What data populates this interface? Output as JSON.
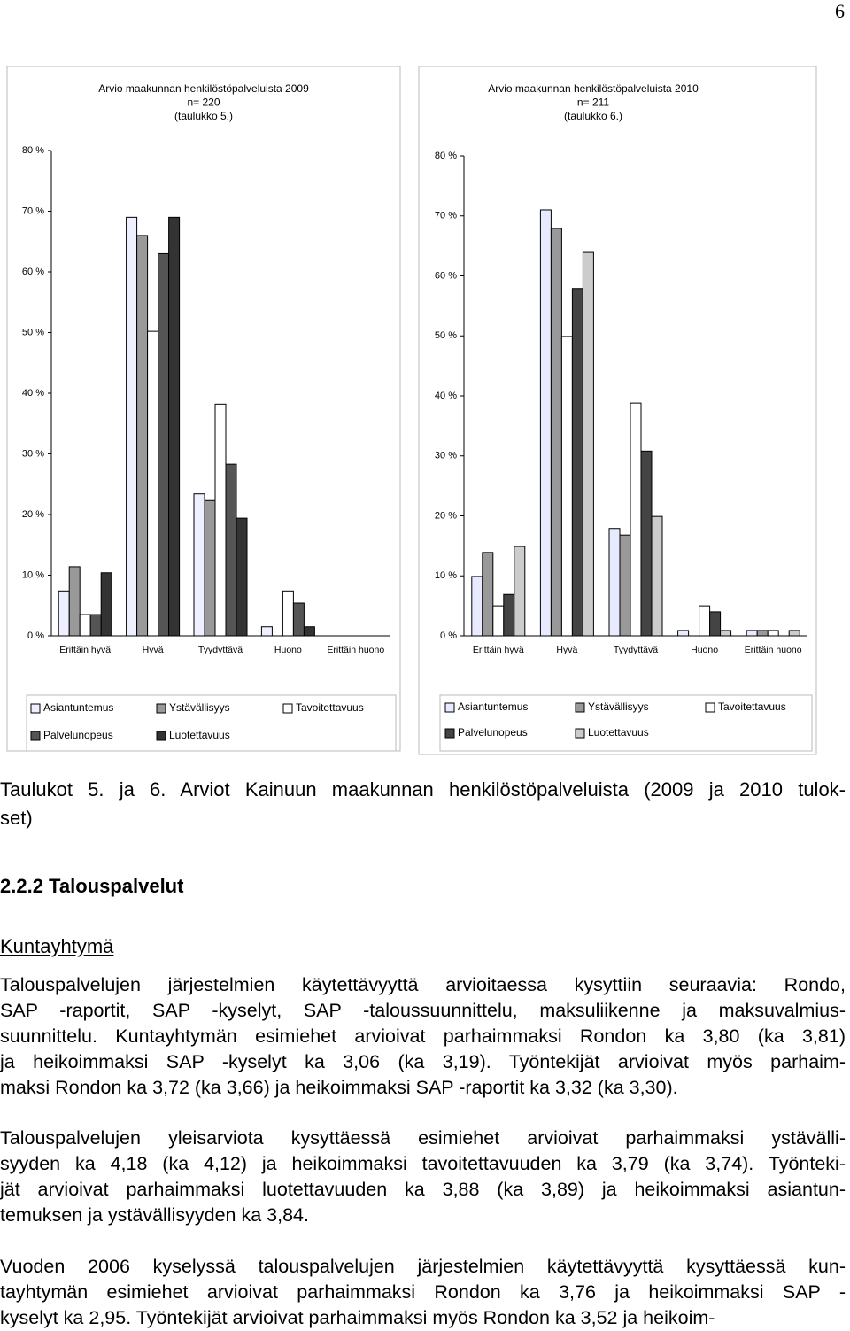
{
  "page_number": "6",
  "chart_data": [
    {
      "type": "bar",
      "title": [
        "Arvio maakunnan henkilöstöpalveluista 2009",
        "n= 220",
        "(taulukko 5.)"
      ],
      "categories": [
        "Erittäin hyvä",
        "Hyvä",
        "Tyydyttävä",
        "Huono",
        "Erittäin huono"
      ],
      "series": [
        {
          "name": "Asiantuntemus",
          "color": "#eef0ff",
          "values": [
            7.4,
            69,
            23.4,
            1.5,
            0
          ]
        },
        {
          "name": "Ystävällisyys",
          "color": "#999999",
          "values": [
            11.4,
            66,
            22.3,
            0,
            0
          ]
        },
        {
          "name": "Tavoitettavuus",
          "color": "#ffffff",
          "values": [
            3.5,
            50.2,
            38.2,
            7.4,
            0
          ]
        },
        {
          "name": "Palvelunopeus",
          "color": "#555555",
          "values": [
            3.5,
            63,
            28.3,
            5.4,
            0
          ]
        },
        {
          "name": "Luotettavuus",
          "color": "#333333",
          "values": [
            10.4,
            69,
            19.4,
            1.5,
            0
          ]
        }
      ],
      "ylim": [
        0,
        80
      ],
      "yticks": [
        {
          "value": 0,
          "label": "0 %"
        },
        {
          "value": 10,
          "label": "10 %"
        },
        {
          "value": 20,
          "label": "20 %"
        },
        {
          "value": 30,
          "label": "30 %"
        },
        {
          "value": 40,
          "label": "40 %"
        },
        {
          "value": 50,
          "label": "50 %"
        },
        {
          "value": 60,
          "label": "60 %"
        },
        {
          "value": 70,
          "label": "70 %"
        },
        {
          "value": 80,
          "label": "80 %"
        }
      ],
      "grid": false,
      "legend": "bottom"
    },
    {
      "type": "bar",
      "title": [
        "Arvio maakunnan henkilöstöpalveluista 2010",
        "n= 211",
        "(taulukko 6.)"
      ],
      "categories": [
        "Erittäin hyvä",
        "Hyvä",
        "Tyydyttävä",
        "Huono",
        "Erittäin huono"
      ],
      "series": [
        {
          "name": "Asiantuntemus",
          "color": "#e8ebff",
          "values": [
            9.9,
            71,
            17.9,
            0.9,
            0.9
          ]
        },
        {
          "name": "Ystävällisyys",
          "color": "#999999",
          "values": [
            13.9,
            67.9,
            16.8,
            0,
            0.9
          ]
        },
        {
          "name": "Tavoitettavuus",
          "color": "#ffffff",
          "values": [
            5,
            49.9,
            38.8,
            5,
            0.9
          ]
        },
        {
          "name": "Palvelunopeus",
          "color": "#444444",
          "values": [
            6.9,
            57.9,
            30.8,
            4,
            0
          ]
        },
        {
          "name": "Luotettavuus",
          "color": "#cccccc",
          "values": [
            14.9,
            63.9,
            19.9,
            0.9,
            0.9
          ]
        }
      ],
      "ylim": [
        0,
        80
      ],
      "yticks": [
        {
          "value": 0,
          "label": "0 %"
        },
        {
          "value": 10,
          "label": "10 %"
        },
        {
          "value": 20,
          "label": "20 %"
        },
        {
          "value": 30,
          "label": "30 %"
        },
        {
          "value": 40,
          "label": "40 %"
        },
        {
          "value": 50,
          "label": "50 %"
        },
        {
          "value": 60,
          "label": "60 %"
        },
        {
          "value": 70,
          "label": "70 %"
        },
        {
          "value": 80,
          "label": "80 %"
        }
      ],
      "grid": false,
      "legend": "bottom"
    }
  ],
  "caption": [
    "Taulukot 5. ja 6. Arviot Kainuun maakunnan henkilöstöpalveluista (2009 ja 2010 tulok-",
    "set)"
  ],
  "heading": "2.2.2 Talouspalvelut",
  "subheading": "Kuntayhtymä",
  "paragraphs": [
    [
      "Talouspalvelujen järjestelmien käytettävyyttä arvioitaessa kysyttiin seuraavia: Rondo,",
      "SAP -raportit, SAP -kyselyt, SAP -taloussuunnittelu, maksuliikenne ja maksuvalmius-",
      "suunnittelu. Kuntayhtymän esimiehet arvioivat parhaimmaksi Rondon ka 3,80 (ka 3,81)",
      "ja heikoimmaksi SAP -kyselyt ka 3,06 (ka 3,19). Työntekijät arvioivat myös parhaim-",
      "maksi Rondon ka 3,72 (ka 3,66) ja heikoimmaksi SAP -raportit ka 3,32 (ka 3,30)."
    ],
    [
      "Talouspalvelujen yleisarviota kysyttäessä esimiehet arvioivat parhaimmaksi ystävälli-",
      "syyden ka 4,18 (ka 4,12) ja heikoimmaksi tavoitettavuuden ka 3,79 (ka 3,74). Työnteki-",
      "jät arvioivat parhaimmaksi luotettavuuden ka 3,88 (ka 3,89) ja heikoimmaksi asiantun-",
      "temuksen ja ystävällisyyden ka 3,84."
    ],
    [
      "Vuoden 2006 kyselyssä talouspalvelujen järjestelmien käytettävyyttä kysyttäessä kun-",
      "tayhtymän esimiehet arvioivat parhaimmaksi Rondon ka 3,76 ja heikoimmaksi SAP -",
      "kyselyt ka 2,95. Työntekijät arvioivat parhaimmaksi myös Rondon ka 3,52 ja heikoim-"
    ]
  ]
}
